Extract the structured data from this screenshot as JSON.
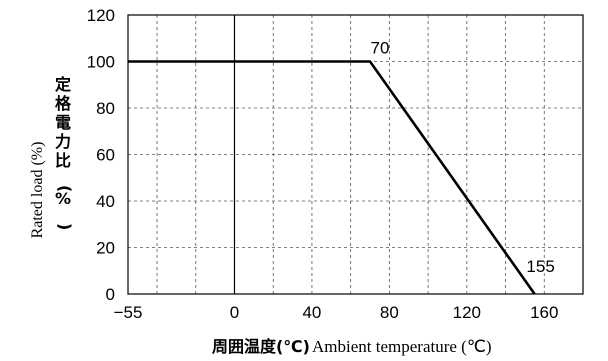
{
  "chart_data": {
    "type": "line",
    "title": "",
    "x_ticks": [
      "−55",
      "0",
      "40",
      "80",
      "120",
      "160"
    ],
    "x_tick_values": [
      -55,
      0,
      40,
      80,
      120,
      160
    ],
    "y_ticks": [
      "0",
      "20",
      "40",
      "60",
      "80",
      "100",
      "120"
    ],
    "y_tick_values": [
      0,
      20,
      40,
      60,
      80,
      100,
      120
    ],
    "xlim": [
      -55,
      180
    ],
    "ylim": [
      0,
      120
    ],
    "grid": true,
    "grid_style": "dashed",
    "xlabel": {
      "japanese": "周囲温度(℃)",
      "english": "Ambient temperature (℃)"
    },
    "ylabel": {
      "english": "Rated load (%)",
      "japanese": "定格電力比(%)"
    },
    "series": [
      {
        "x": [
          -55,
          70,
          155
        ],
        "y": [
          100,
          100,
          0
        ]
      }
    ],
    "annotations": [
      {
        "text": "70",
        "x": 70,
        "y": 100
      },
      {
        "text": "155",
        "x": 155,
        "y": 0
      }
    ]
  }
}
